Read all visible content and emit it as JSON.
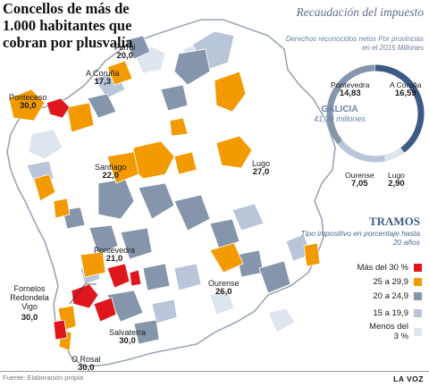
{
  "headline": "Concellos de más de 1.000 habitantes que cobran por plusvalía",
  "recaudacion": {
    "title": "Recaudación del impuesto",
    "subtitle": "Derechos reconocidos netos Por provincias en el 2015 Millones",
    "total_label": "GALICIA",
    "total_value": "41,39 millones",
    "provinces": [
      {
        "name": "Pontevedra",
        "value": "14,83",
        "amount": 14.83
      },
      {
        "name": "A Coruña",
        "value": "16,59",
        "amount": 16.59
      },
      {
        "name": "Ourense",
        "value": "7,05",
        "amount": 7.05
      },
      {
        "name": "Lugo",
        "value": "2,90",
        "amount": 2.9
      }
    ]
  },
  "places": [
    {
      "name": "Ferrol",
      "value": "20,0"
    },
    {
      "name": "A Coruña",
      "value": "17,3"
    },
    {
      "name": "Ponteceso",
      "value": "30,0"
    },
    {
      "name": "Santiago",
      "value": "22,0"
    },
    {
      "name": "Lugo",
      "value": "27,0"
    },
    {
      "name": "Pontevedra",
      "value": "21,0"
    },
    {
      "name": "Ourense",
      "value": "26,0"
    },
    {
      "name": "Fornelos Redondela Vigo",
      "value": "30,0"
    },
    {
      "name": "Salvaterra",
      "value": "30,0"
    },
    {
      "name": "O Rosal",
      "value": "30,0"
    }
  ],
  "legend": {
    "title": "TRAMOS",
    "subtitle": "Tipo impositivo en porcentaje hasta 20 años",
    "items": [
      {
        "label": "Más del 30 %",
        "color": "#e0161d"
      },
      {
        "label": "25 a 29,9",
        "color": "#f29a00"
      },
      {
        "label": "20 a 24,9",
        "color": "#8595ab"
      },
      {
        "label": "15 a 19,9",
        "color": "#b9c5d8"
      },
      {
        "label": "Menos del 3 %",
        "color": "#dde5ef"
      }
    ]
  },
  "source": "Fuente: Elaboración propia",
  "brand": "LA VOZ"
}
